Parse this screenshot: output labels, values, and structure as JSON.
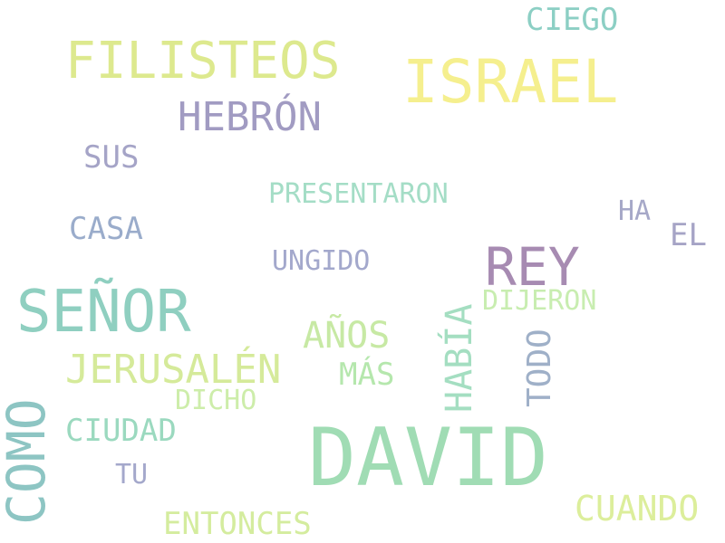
{
  "words": {
    "david": {
      "text": "DAVID",
      "color": "#a0dcb4"
    },
    "israel": {
      "text": "ISRAEL",
      "color": "#f5ef8e"
    },
    "senor": {
      "text": "SEÑOR",
      "color": "#8fcfc0"
    },
    "filisteos": {
      "text": "FILISTEOS",
      "color": "#dde98e"
    },
    "rey": {
      "text": "REY",
      "color": "#a78bb2"
    },
    "hebron": {
      "text": "HEBRÓN",
      "color": "#a19bc2"
    },
    "jerusalen": {
      "text": "JERUSALÉN",
      "color": "#d5ea9a"
    },
    "anos": {
      "text": "AÑOS",
      "color": "#c7e9a4"
    },
    "cuando": {
      "text": "CUANDO",
      "color": "#dcee9b"
    },
    "ciego": {
      "text": "CIEGO",
      "color": "#8ccfc4"
    },
    "ciudad": {
      "text": "CIUDAD",
      "color": "#9bd9bf"
    },
    "entonces": {
      "text": "ENTONCES",
      "color": "#d4ec9e"
    },
    "sus": {
      "text": "SUS",
      "color": "#a5a4c7"
    },
    "casa": {
      "text": "CASA",
      "color": "#9aaccb"
    },
    "mas": {
      "text": "MÁS",
      "color": "#b5e7ad"
    },
    "el": {
      "text": "EL",
      "color": "#a6a4c6"
    },
    "presentaron": {
      "text": "PRESENTARON",
      "color": "#a4ddc6"
    },
    "dijeron": {
      "text": "DIJERON",
      "color": "#c8edb0"
    },
    "ungido": {
      "text": "UNGIDO",
      "color": "#a3a8cc"
    },
    "dicho": {
      "text": "DICHO",
      "color": "#cdedaa"
    },
    "ha": {
      "text": "HA",
      "color": "#a6a8c8"
    },
    "tu": {
      "text": "TU",
      "color": "#a4a8cb"
    },
    "como": {
      "text": "COMO",
      "color": "#8dc5c3"
    },
    "habia": {
      "text": "HABÍA",
      "color": "#a4dec1"
    },
    "todo": {
      "text": "TODO",
      "color": "#9fb0c8"
    }
  }
}
